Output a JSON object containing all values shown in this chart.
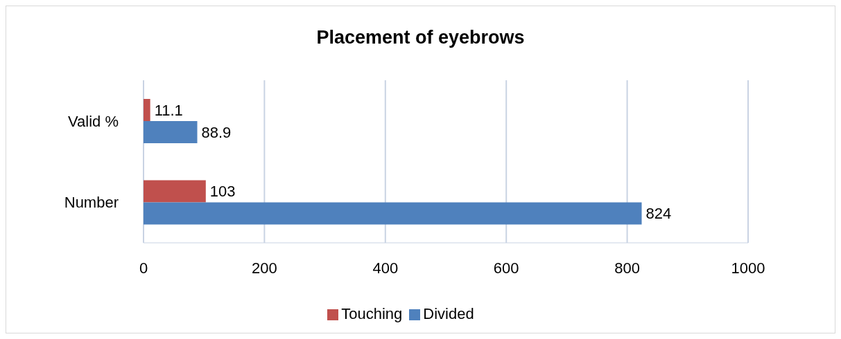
{
  "chart_data": {
    "type": "bar",
    "orientation": "horizontal",
    "title": "Placement of eyebrows",
    "categories": [
      "Valid %",
      "Number"
    ],
    "series": [
      {
        "name": "Touching",
        "color": "#c0504d",
        "values": [
          11.1,
          103
        ]
      },
      {
        "name": "Divided",
        "color": "#4f81bd",
        "values": [
          88.9,
          824
        ]
      }
    ],
    "xlim": [
      0,
      1000
    ],
    "xticks": [
      0,
      200,
      400,
      600,
      800,
      1000
    ],
    "grid": "x",
    "legend": "bottom",
    "data_labels": true
  }
}
